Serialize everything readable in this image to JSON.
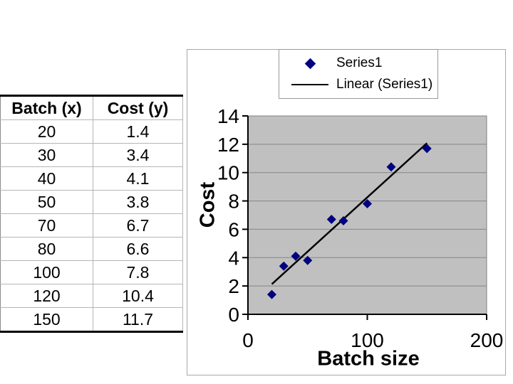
{
  "slide": {
    "background": "#ffffff"
  },
  "table": {
    "headers": [
      "Batch (x)",
      "Cost (y)"
    ],
    "rows": [
      [
        "20",
        "1.4"
      ],
      [
        "30",
        "3.4"
      ],
      [
        "40",
        "4.1"
      ],
      [
        "50",
        "3.8"
      ],
      [
        "70",
        "6.7"
      ],
      [
        "80",
        "6.6"
      ],
      [
        "100",
        "7.8"
      ],
      [
        "120",
        "10.4"
      ],
      [
        "150",
        "11.7"
      ]
    ]
  },
  "chart_data": {
    "type": "scatter",
    "title": "",
    "xlabel": "Batch size",
    "ylabel": "Cost",
    "x": [
      20,
      30,
      40,
      50,
      70,
      80,
      100,
      120,
      150
    ],
    "y": [
      1.4,
      3.4,
      4.1,
      3.8,
      6.7,
      6.6,
      7.8,
      10.4,
      11.7
    ],
    "xlim": [
      0,
      200
    ],
    "ylim": [
      0,
      14
    ],
    "xticks": [
      0,
      100,
      200
    ],
    "yticks": [
      0,
      2,
      4,
      6,
      8,
      10,
      12,
      14
    ],
    "grid": "horizontal",
    "legend": {
      "position": "top",
      "entries": [
        {
          "label": "Series1",
          "marker": "diamond"
        },
        {
          "label": "Linear (Series1)",
          "marker": "line"
        }
      ]
    },
    "trendline": {
      "type": "linear",
      "x1": 20,
      "y1": 2.13,
      "x2": 150,
      "y2": 12.08
    },
    "colors": {
      "marker": "#000080",
      "trendline": "#000000",
      "plot_bg": "#c0c0c0",
      "gridline": "#868686",
      "axis": "#000000",
      "plot_border": "#808080",
      "tick_text": "#000000"
    }
  }
}
